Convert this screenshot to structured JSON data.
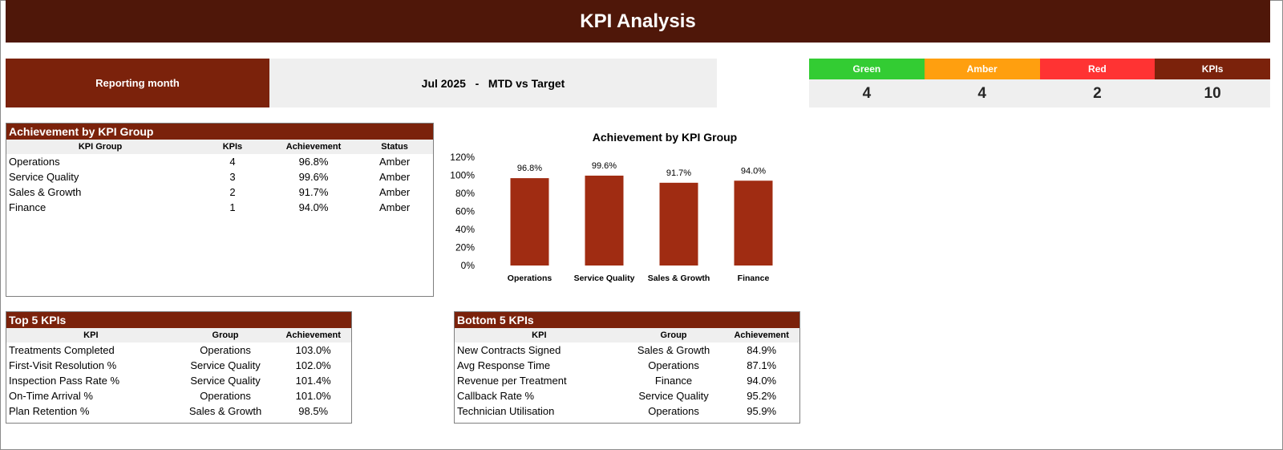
{
  "header": {
    "title": "KPI Analysis"
  },
  "reporting": {
    "label": "Reporting month",
    "value": "Jul 2025   -   MTD vs Target"
  },
  "status_tiles": [
    {
      "label": "Green",
      "value": "4",
      "color": "#33cc33"
    },
    {
      "label": "Amber",
      "value": "4",
      "color": "#ff9f0f"
    },
    {
      "label": "Red",
      "value": "2",
      "color": "#ff3333"
    },
    {
      "label": "KPIs",
      "value": "10",
      "color": "#7b220b"
    }
  ],
  "group_table": {
    "title": "Achievement by KPI Group",
    "columns": [
      "KPI Group",
      "KPIs",
      "Achievement",
      "Status"
    ],
    "rows": [
      [
        "Operations",
        "4",
        "96.8%",
        "Amber"
      ],
      [
        "Service Quality",
        "3",
        "99.6%",
        "Amber"
      ],
      [
        "Sales & Growth",
        "2",
        "91.7%",
        "Amber"
      ],
      [
        "Finance",
        "1",
        "94.0%",
        "Amber"
      ]
    ]
  },
  "top_table": {
    "title": "Top 5 KPIs",
    "columns": [
      "KPI",
      "Group",
      "Achievement"
    ],
    "rows": [
      [
        "Treatments Completed",
        "Operations",
        "103.0%"
      ],
      [
        "First-Visit Resolution %",
        "Service Quality",
        "102.0%"
      ],
      [
        "Inspection Pass Rate %",
        "Service Quality",
        "101.4%"
      ],
      [
        "On-Time Arrival %",
        "Operations",
        "101.0%"
      ],
      [
        "Plan Retention %",
        "Sales & Growth",
        "98.5%"
      ]
    ]
  },
  "bottom_table": {
    "title": "Bottom 5 KPIs",
    "columns": [
      "KPI",
      "Group",
      "Achievement"
    ],
    "rows": [
      [
        "New Contracts Signed",
        "Sales & Growth",
        "84.9%"
      ],
      [
        "Avg Response Time",
        "Operations",
        "87.1%"
      ],
      [
        "Revenue per Treatment",
        "Finance",
        "94.0%"
      ],
      [
        "Callback Rate %",
        "Service Quality",
        "95.2%"
      ],
      [
        "Technician Utilisation",
        "Operations",
        "95.9%"
      ]
    ]
  },
  "chart_data": {
    "type": "bar",
    "title": "Achievement by KPI Group",
    "categories": [
      "Operations",
      "Service Quality",
      "Sales & Growth",
      "Finance"
    ],
    "values": [
      96.8,
      99.6,
      91.7,
      94.0
    ],
    "data_labels": [
      "96.8%",
      "99.6%",
      "91.7%",
      "94.0%"
    ],
    "ylim": [
      0,
      120
    ],
    "yticks": [
      "0%",
      "20%",
      "40%",
      "60%",
      "80%",
      "100%",
      "120%"
    ],
    "grid": false,
    "legend": "none",
    "bar_color": "#a02c12"
  }
}
